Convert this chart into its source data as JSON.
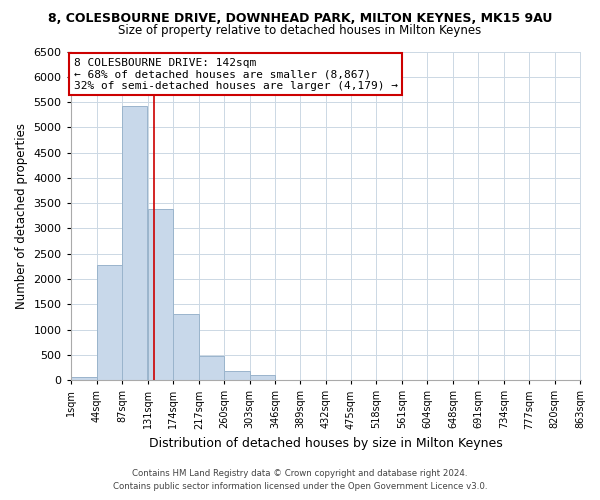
{
  "title": "8, COLESBOURNE DRIVE, DOWNHEAD PARK, MILTON KEYNES, MK15 9AU",
  "subtitle": "Size of property relative to detached houses in Milton Keynes",
  "xlabel": "Distribution of detached houses by size in Milton Keynes",
  "ylabel": "Number of detached properties",
  "bar_color": "#c8d8ea",
  "bar_edge_color": "#9ab4cc",
  "marker_line_color": "#cc0000",
  "marker_value": 142,
  "bins_left": [
    1,
    44,
    87,
    131,
    174,
    217,
    260,
    303,
    346,
    389,
    432,
    475,
    518,
    561,
    604,
    648,
    691,
    734,
    777,
    820
  ],
  "bin_width": 43,
  "bin_labels": [
    "1sqm",
    "44sqm",
    "87sqm",
    "131sqm",
    "174sqm",
    "217sqm",
    "260sqm",
    "303sqm",
    "346sqm",
    "389sqm",
    "432sqm",
    "475sqm",
    "518sqm",
    "561sqm",
    "604sqm",
    "648sqm",
    "691sqm",
    "734sqm",
    "777sqm",
    "820sqm",
    "863sqm"
  ],
  "counts": [
    70,
    2280,
    5430,
    3380,
    1310,
    480,
    185,
    95,
    0,
    0,
    0,
    0,
    0,
    0,
    0,
    0,
    0,
    0,
    0,
    0
  ],
  "ylim": [
    0,
    6500
  ],
  "yticks": [
    0,
    500,
    1000,
    1500,
    2000,
    2500,
    3000,
    3500,
    4000,
    4500,
    5000,
    5500,
    6000,
    6500
  ],
  "annotation_text": "8 COLESBOURNE DRIVE: 142sqm\n← 68% of detached houses are smaller (8,867)\n32% of semi-detached houses are larger (4,179) →",
  "footer_line1": "Contains HM Land Registry data © Crown copyright and database right 2024.",
  "footer_line2": "Contains public sector information licensed under the Open Government Licence v3.0.",
  "background_color": "#ffffff",
  "grid_color": "#ccd8e4"
}
